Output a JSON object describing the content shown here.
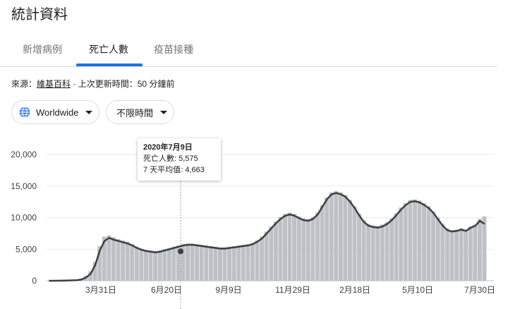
{
  "page_title": "統計資料",
  "tabs": [
    {
      "label": "新增病例",
      "active": false
    },
    {
      "label": "死亡人數",
      "active": true
    },
    {
      "label": "疫苗接種",
      "active": false
    }
  ],
  "source": {
    "prefix": "來源：",
    "link": "維基百科",
    "separator": " · ",
    "updated": "上次更新時間：50 分鐘前"
  },
  "filters": {
    "region": {
      "label": "Worldwide",
      "icon": "globe-icon"
    },
    "period": {
      "label": "不限時間"
    }
  },
  "tooltip": {
    "date": "2020年7月9日",
    "deaths_label": "死亡人數",
    "deaths_value": "5,575",
    "avg_label": "7 天平均值",
    "avg_value": "4,663"
  },
  "colors": {
    "accent": "#1a73e8",
    "bars": "#bdc1c6",
    "line": "#3c4043",
    "grid": "#e8eaed"
  },
  "chart_data": {
    "type": "bar",
    "ylim": [
      0,
      20000
    ],
    "yticks": [
      "0",
      "5,000",
      "10,000",
      "15,000",
      "20,000"
    ],
    "xticks": [
      "3月31日",
      "6月20日",
      "9月9日",
      "11月29日",
      "2月18日",
      "5月10日",
      "7月30日"
    ],
    "xlabel": "",
    "ylabel": "",
    "grid": true,
    "x_unit": "week",
    "x_start": "2020年1月",
    "x_end": "2021年8月",
    "series": [
      {
        "kind": "bar",
        "values": [
          0,
          5,
          20,
          40,
          60,
          80,
          120,
          300,
          800,
          1500,
          3000,
          5500,
          7000,
          7200,
          6900,
          6600,
          6400,
          6200,
          5800,
          5400,
          5100,
          4900,
          4800,
          4700,
          4800,
          5000,
          5200,
          5400,
          5600,
          5800,
          5900,
          5900,
          5800,
          5700,
          5600,
          5500,
          5400,
          5300,
          5300,
          5400,
          5500,
          5600,
          5700,
          5800,
          6000,
          6400,
          7000,
          7800,
          8600,
          9400,
          10100,
          10600,
          10800,
          10600,
          10200,
          9900,
          9800,
          10100,
          10800,
          12000,
          13200,
          14000,
          14200,
          14000,
          13600,
          12800,
          11800,
          10600,
          9600,
          9000,
          8800,
          8700,
          8900,
          9300,
          9900,
          10700,
          11600,
          12300,
          12800,
          12900,
          12700,
          12300,
          11800,
          11000,
          10000,
          9000,
          8300,
          8000,
          8100,
          8300,
          8100,
          8600,
          8900,
          9800,
          10200
        ]
      },
      {
        "kind": "line",
        "name": "7 天平均值",
        "values": [
          0,
          5,
          15,
          30,
          50,
          70,
          100,
          200,
          500,
          1100,
          2500,
          4800,
          6300,
          6800,
          6500,
          6300,
          6100,
          5900,
          5600,
          5200,
          4900,
          4700,
          4600,
          4500,
          4600,
          4800,
          5000,
          5200,
          5400,
          5600,
          5700,
          5700,
          5600,
          5500,
          5400,
          5300,
          5200,
          5100,
          5100,
          5200,
          5300,
          5400,
          5500,
          5600,
          5800,
          6200,
          6700,
          7500,
          8300,
          9100,
          9800,
          10300,
          10500,
          10300,
          9900,
          9600,
          9500,
          9800,
          10500,
          11700,
          12900,
          13700,
          13900,
          13700,
          13300,
          12500,
          11500,
          10300,
          9300,
          8700,
          8500,
          8400,
          8600,
          9000,
          9600,
          10400,
          11300,
          12000,
          12500,
          12600,
          12400,
          12000,
          11500,
          10700,
          9700,
          8700,
          8000,
          7800,
          7900,
          8100,
          7900,
          8400,
          8700,
          9500,
          9000
        ]
      }
    ]
  }
}
